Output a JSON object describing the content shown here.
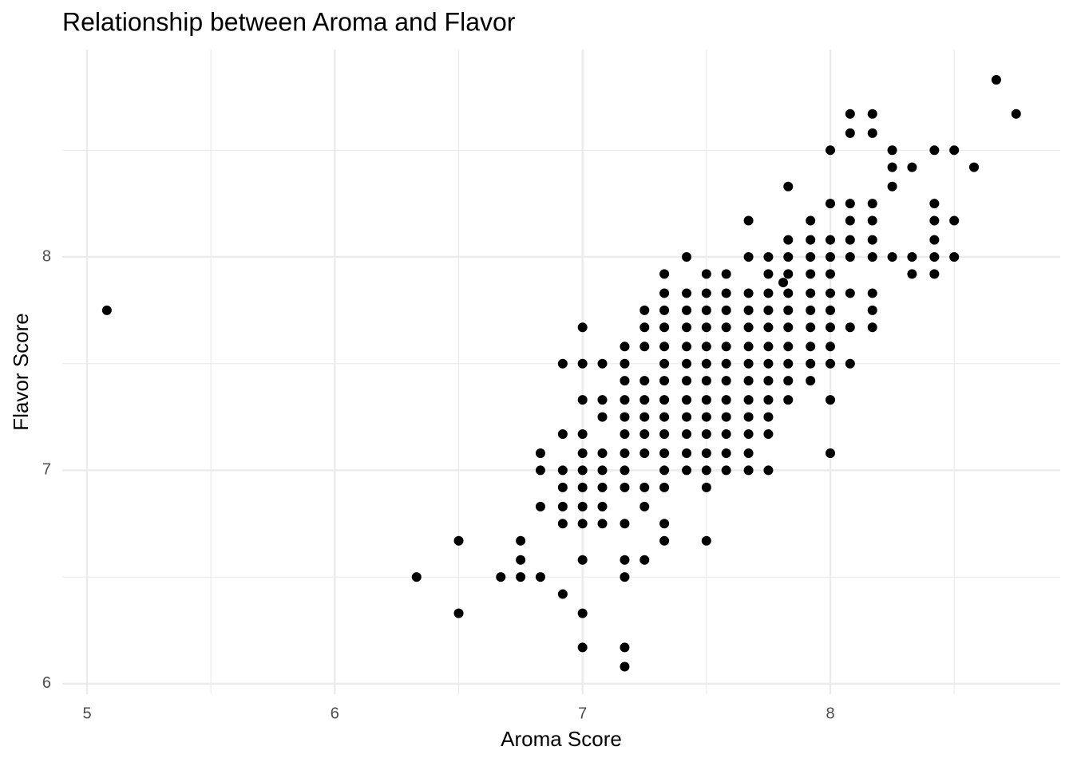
{
  "chart_data": {
    "type": "scatter",
    "title": "Relationship between Aroma and Flavor",
    "x_label": "Aroma Score",
    "y_label": "Flavor Score",
    "color": "#000000",
    "grid": true,
    "xlim": [
      4.9,
      8.928
    ],
    "ylim": [
      5.951,
      8.972
    ],
    "xticks": [
      5,
      6,
      7,
      8
    ],
    "yticks": [
      6,
      7,
      8
    ],
    "x": [
      5.08,
      6.33,
      6.5,
      6.5,
      6.67,
      6.75,
      6.75,
      6.75,
      6.83,
      6.83,
      6.83,
      6.83,
      6.92,
      6.92,
      6.92,
      6.92,
      6.92,
      6.92,
      6.92,
      7,
      7,
      7,
      7,
      7,
      7,
      7,
      7,
      7,
      7,
      7,
      7,
      7.08,
      7.08,
      7.08,
      7.08,
      7.08,
      7.08,
      7.08,
      7.08,
      7.17,
      7.17,
      7.17,
      7.17,
      7.17,
      7.17,
      7.17,
      7.17,
      7.17,
      7.17,
      7.17,
      7.17,
      7.17,
      7.17,
      7.25,
      7.25,
      7.25,
      7.25,
      7.25,
      7.25,
      7.25,
      7.25,
      7.25,
      7.25,
      7.25,
      7.33,
      7.33,
      7.33,
      7.33,
      7.33,
      7.33,
      7.33,
      7.33,
      7.33,
      7.33,
      7.33,
      7.33,
      7.33,
      7.33,
      7.33,
      7.42,
      7.42,
      7.42,
      7.42,
      7.42,
      7.42,
      7.42,
      7.42,
      7.42,
      7.42,
      7.42,
      7.42,
      7.5,
      7.5,
      7.5,
      7.5,
      7.5,
      7.5,
      7.5,
      7.5,
      7.5,
      7.5,
      7.5,
      7.5,
      7.5,
      7.5,
      7.58,
      7.58,
      7.58,
      7.58,
      7.58,
      7.58,
      7.58,
      7.58,
      7.58,
      7.58,
      7.58,
      7.58,
      7.67,
      7.67,
      7.67,
      7.67,
      7.67,
      7.67,
      7.67,
      7.67,
      7.67,
      7.67,
      7.67,
      7.67,
      7.67,
      7.75,
      7.75,
      7.75,
      7.75,
      7.75,
      7.75,
      7.75,
      7.75,
      7.75,
      7.75,
      7.75,
      7.75,
      7.83,
      7.83,
      7.83,
      7.83,
      7.83,
      7.83,
      7.83,
      7.83,
      7.83,
      7.83,
      7.83,
      7.92,
      7.92,
      7.92,
      7.92,
      7.92,
      7.92,
      7.92,
      7.92,
      7.92,
      7.92,
      8,
      8,
      8,
      8,
      8,
      8,
      8,
      8,
      8,
      8,
      8,
      8,
      8.08,
      8.08,
      8.08,
      8.08,
      8.08,
      8.08,
      8.08,
      8.08,
      8.08,
      8.17,
      8.17,
      8.17,
      8.17,
      8.17,
      8.17,
      8.17,
      8.17,
      8.17,
      8.25,
      8.25,
      8.25,
      8.25,
      8.33,
      8.33,
      8.33,
      8.42,
      8.42,
      8.42,
      8.42,
      8.42,
      8.42,
      8.5,
      8.5,
      8.5,
      8.58,
      8.67,
      8.75,
      7.81
    ],
    "y": [
      7.75,
      6.5,
      6.67,
      6.33,
      6.5,
      6.67,
      6.58,
      6.5,
      7.08,
      7,
      6.83,
      6.5,
      7.5,
      7.17,
      7,
      6.92,
      6.83,
      6.75,
      6.42,
      7.67,
      7.5,
      7.33,
      7.17,
      7.08,
      7,
      6.92,
      6.83,
      6.75,
      6.58,
      6.33,
      6.17,
      7.5,
      7.33,
      7.25,
      7.08,
      7,
      6.92,
      6.83,
      6.75,
      7.58,
      7.5,
      7.42,
      7.33,
      7.25,
      7.17,
      7.08,
      7,
      6.92,
      6.75,
      6.58,
      6.5,
      6.17,
      6.08,
      7.75,
      7.67,
      7.58,
      7.42,
      7.33,
      7.25,
      7.17,
      7.08,
      6.92,
      6.83,
      6.58,
      7.92,
      7.83,
      7.75,
      7.67,
      7.58,
      7.5,
      7.42,
      7.33,
      7.25,
      7.17,
      7.08,
      7,
      6.92,
      6.75,
      6.67,
      8,
      7.83,
      7.75,
      7.67,
      7.58,
      7.5,
      7.42,
      7.33,
      7.25,
      7.17,
      7.08,
      7,
      7.92,
      7.83,
      7.75,
      7.67,
      7.58,
      7.5,
      7.42,
      7.33,
      7.25,
      7.17,
      7.08,
      7,
      6.92,
      6.67,
      7.92,
      7.83,
      7.75,
      7.67,
      7.58,
      7.5,
      7.42,
      7.33,
      7.25,
      7.17,
      7.08,
      7,
      8.17,
      8,
      7.83,
      7.75,
      7.67,
      7.58,
      7.5,
      7.42,
      7.33,
      7.25,
      7.17,
      7.08,
      7,
      8,
      7.92,
      7.83,
      7.75,
      7.67,
      7.58,
      7.5,
      7.42,
      7.33,
      7.25,
      7.17,
      7,
      8.33,
      8.08,
      8,
      7.92,
      7.83,
      7.75,
      7.67,
      7.58,
      7.5,
      7.42,
      7.33,
      8.17,
      8.08,
      8,
      7.92,
      7.83,
      7.75,
      7.67,
      7.58,
      7.5,
      7.42,
      8.5,
      8.25,
      8.08,
      8,
      7.92,
      7.83,
      7.75,
      7.67,
      7.58,
      7.5,
      7.33,
      7.08,
      8.67,
      8.58,
      8.25,
      8.17,
      8.08,
      8,
      7.83,
      7.67,
      7.5,
      8.67,
      8.58,
      8.25,
      8.17,
      8.08,
      8,
      7.83,
      7.75,
      7.67,
      8.5,
      8.42,
      8.33,
      8,
      8.42,
      8,
      7.92,
      8.5,
      8.25,
      8.17,
      8.08,
      8,
      7.92,
      8.5,
      8.17,
      8,
      8.42,
      8.83,
      8.67,
      7.88
    ]
  }
}
